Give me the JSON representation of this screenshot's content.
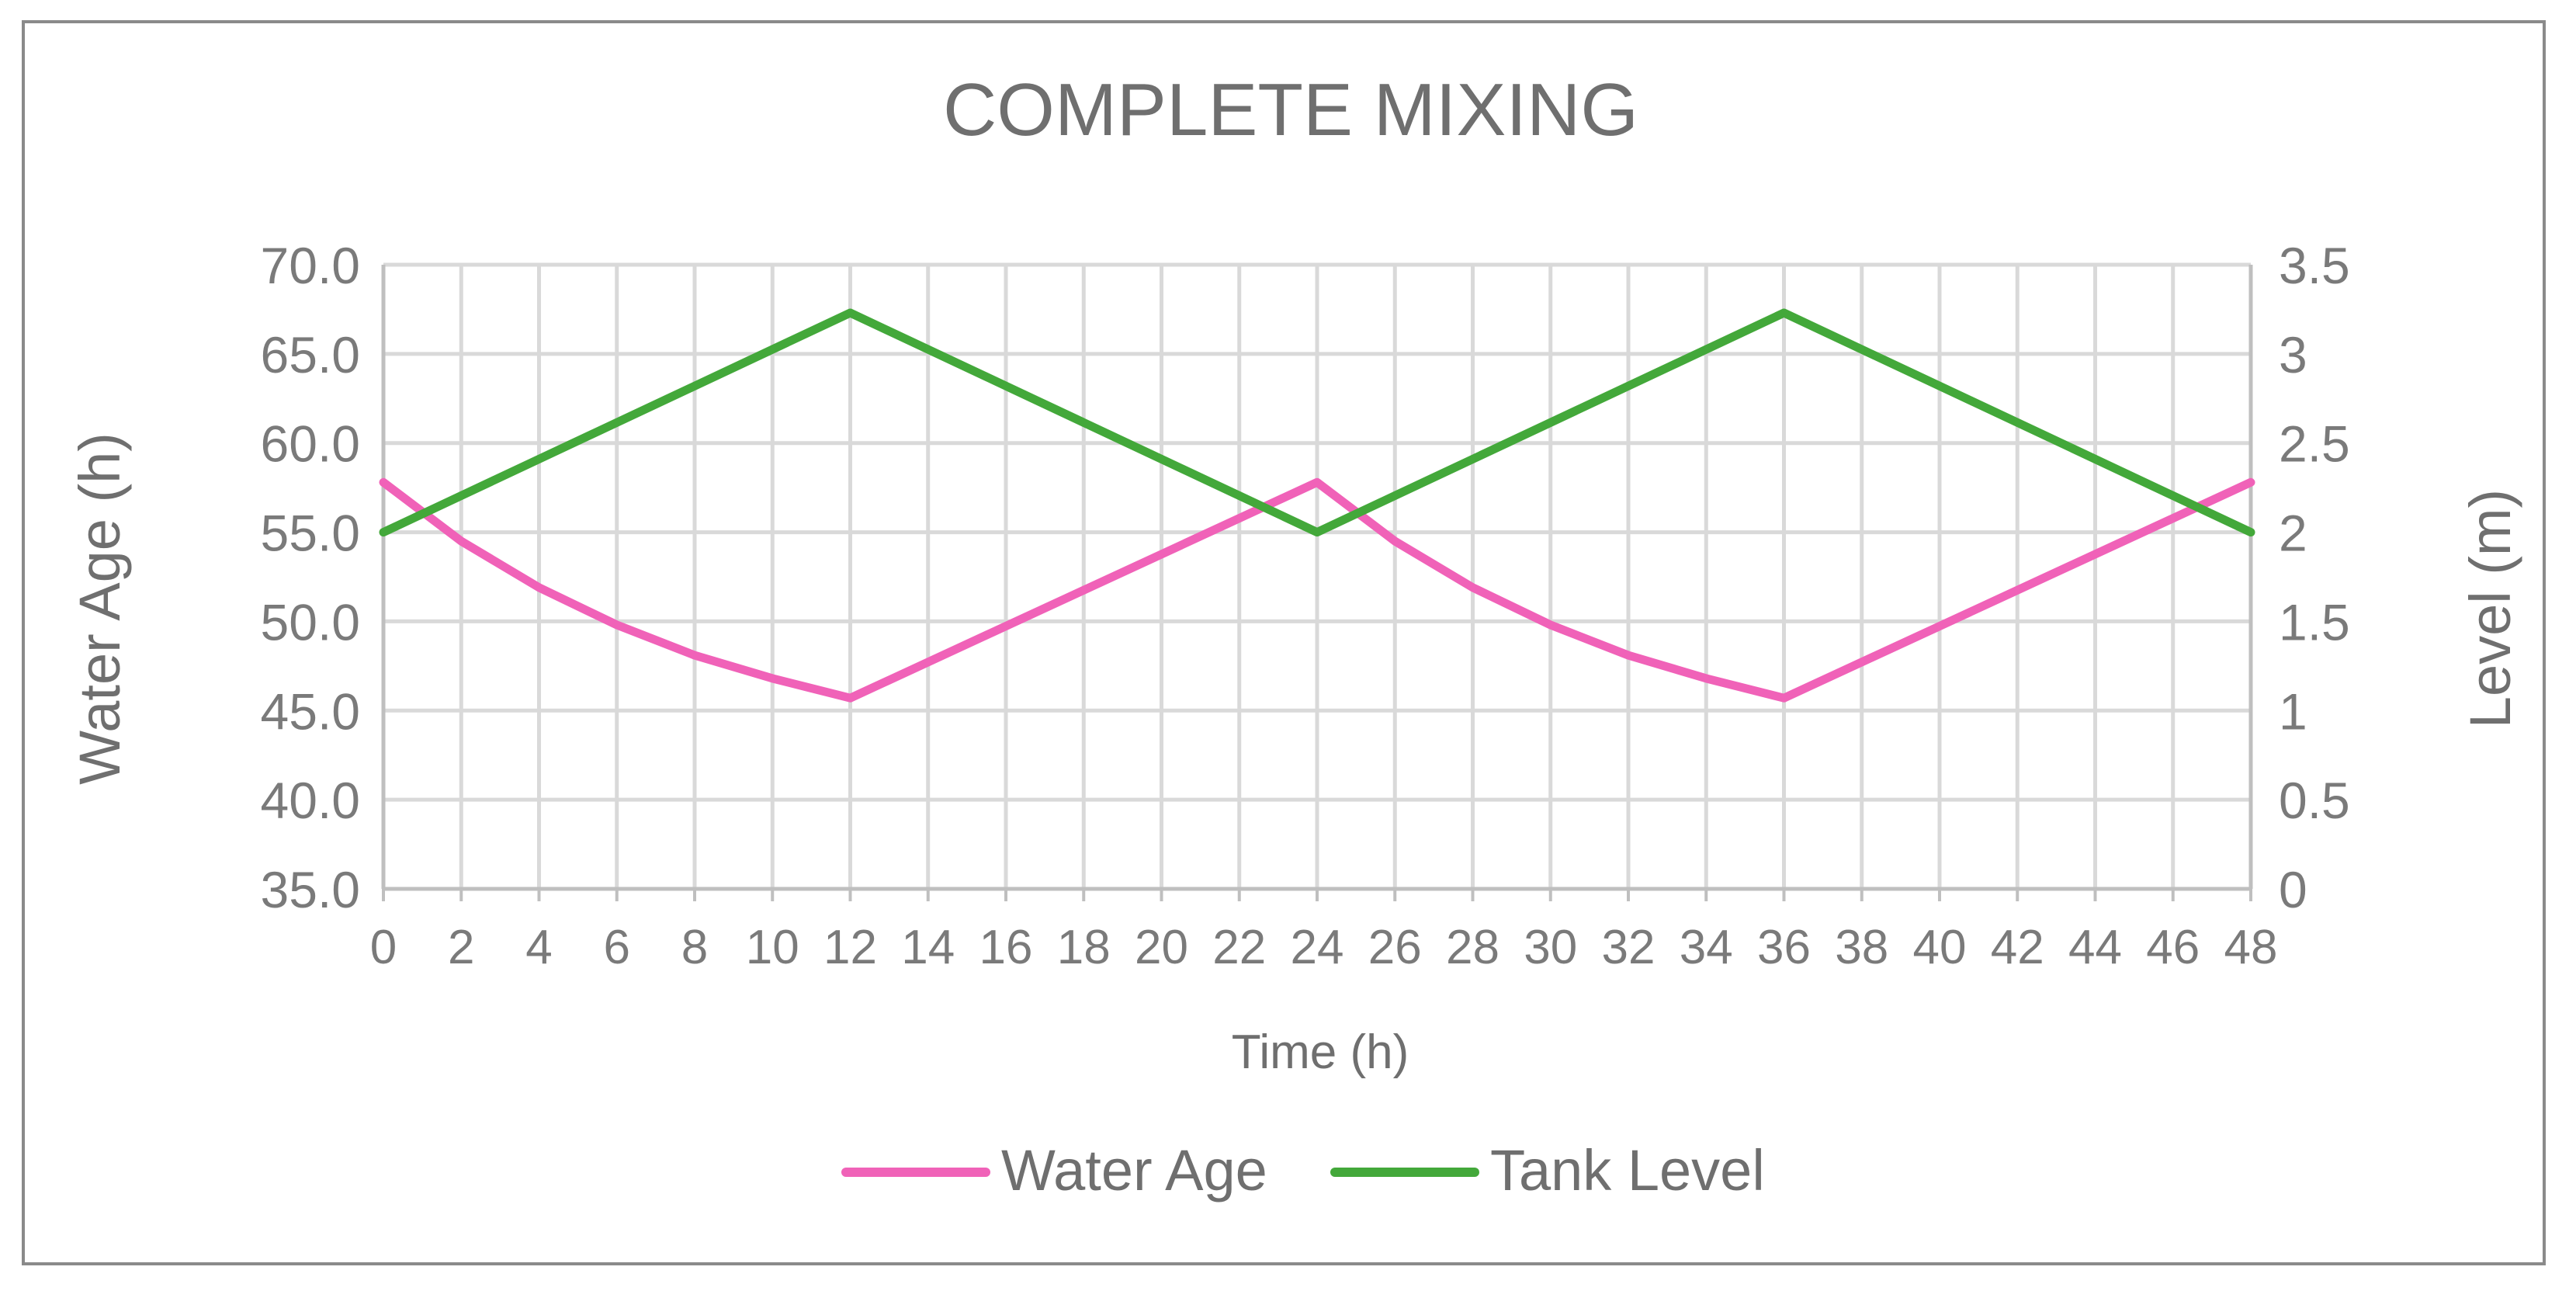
{
  "chart_data": {
    "type": "line",
    "title": "COMPLETE MIXING",
    "xlabel": "Time (h)",
    "ylabel": "Water Age (h)",
    "y2label": "Level (m)",
    "xlim": [
      0,
      48
    ],
    "ylim": [
      35,
      70
    ],
    "y2lim": [
      0,
      3.5
    ],
    "x_ticks": [
      "0",
      "2",
      "4",
      "6",
      "8",
      "10",
      "12",
      "14",
      "16",
      "18",
      "20",
      "22",
      "24",
      "26",
      "28",
      "30",
      "32",
      "34",
      "36",
      "38",
      "40",
      "42",
      "44",
      "46",
      "48"
    ],
    "y_ticks": [
      "35.0",
      "40.0",
      "45.0",
      "50.0",
      "55.0",
      "60.0",
      "65.0",
      "70.0"
    ],
    "y2_ticks": [
      "0",
      "0.5",
      "1",
      "1.5",
      "2",
      "2.5",
      "3",
      "3.5"
    ],
    "grid": true,
    "legend_position": "bottom",
    "series": [
      {
        "name": "Water Age",
        "axis": "left",
        "color": "#F062B8",
        "x": [
          0,
          2,
          4,
          6,
          8,
          10,
          12,
          24,
          26,
          28,
          30,
          32,
          34,
          36,
          48
        ],
        "values": [
          57.8,
          54.5,
          51.9,
          49.8,
          48.1,
          46.8,
          45.7,
          57.8,
          54.5,
          51.9,
          49.8,
          48.1,
          46.8,
          45.7,
          57.8
        ]
      },
      {
        "name": "Tank Level",
        "axis": "right",
        "color": "#43A83A",
        "x": [
          0,
          12,
          24,
          36,
          48
        ],
        "values": [
          2.0,
          3.23,
          2.0,
          3.23,
          2.0
        ]
      }
    ]
  }
}
